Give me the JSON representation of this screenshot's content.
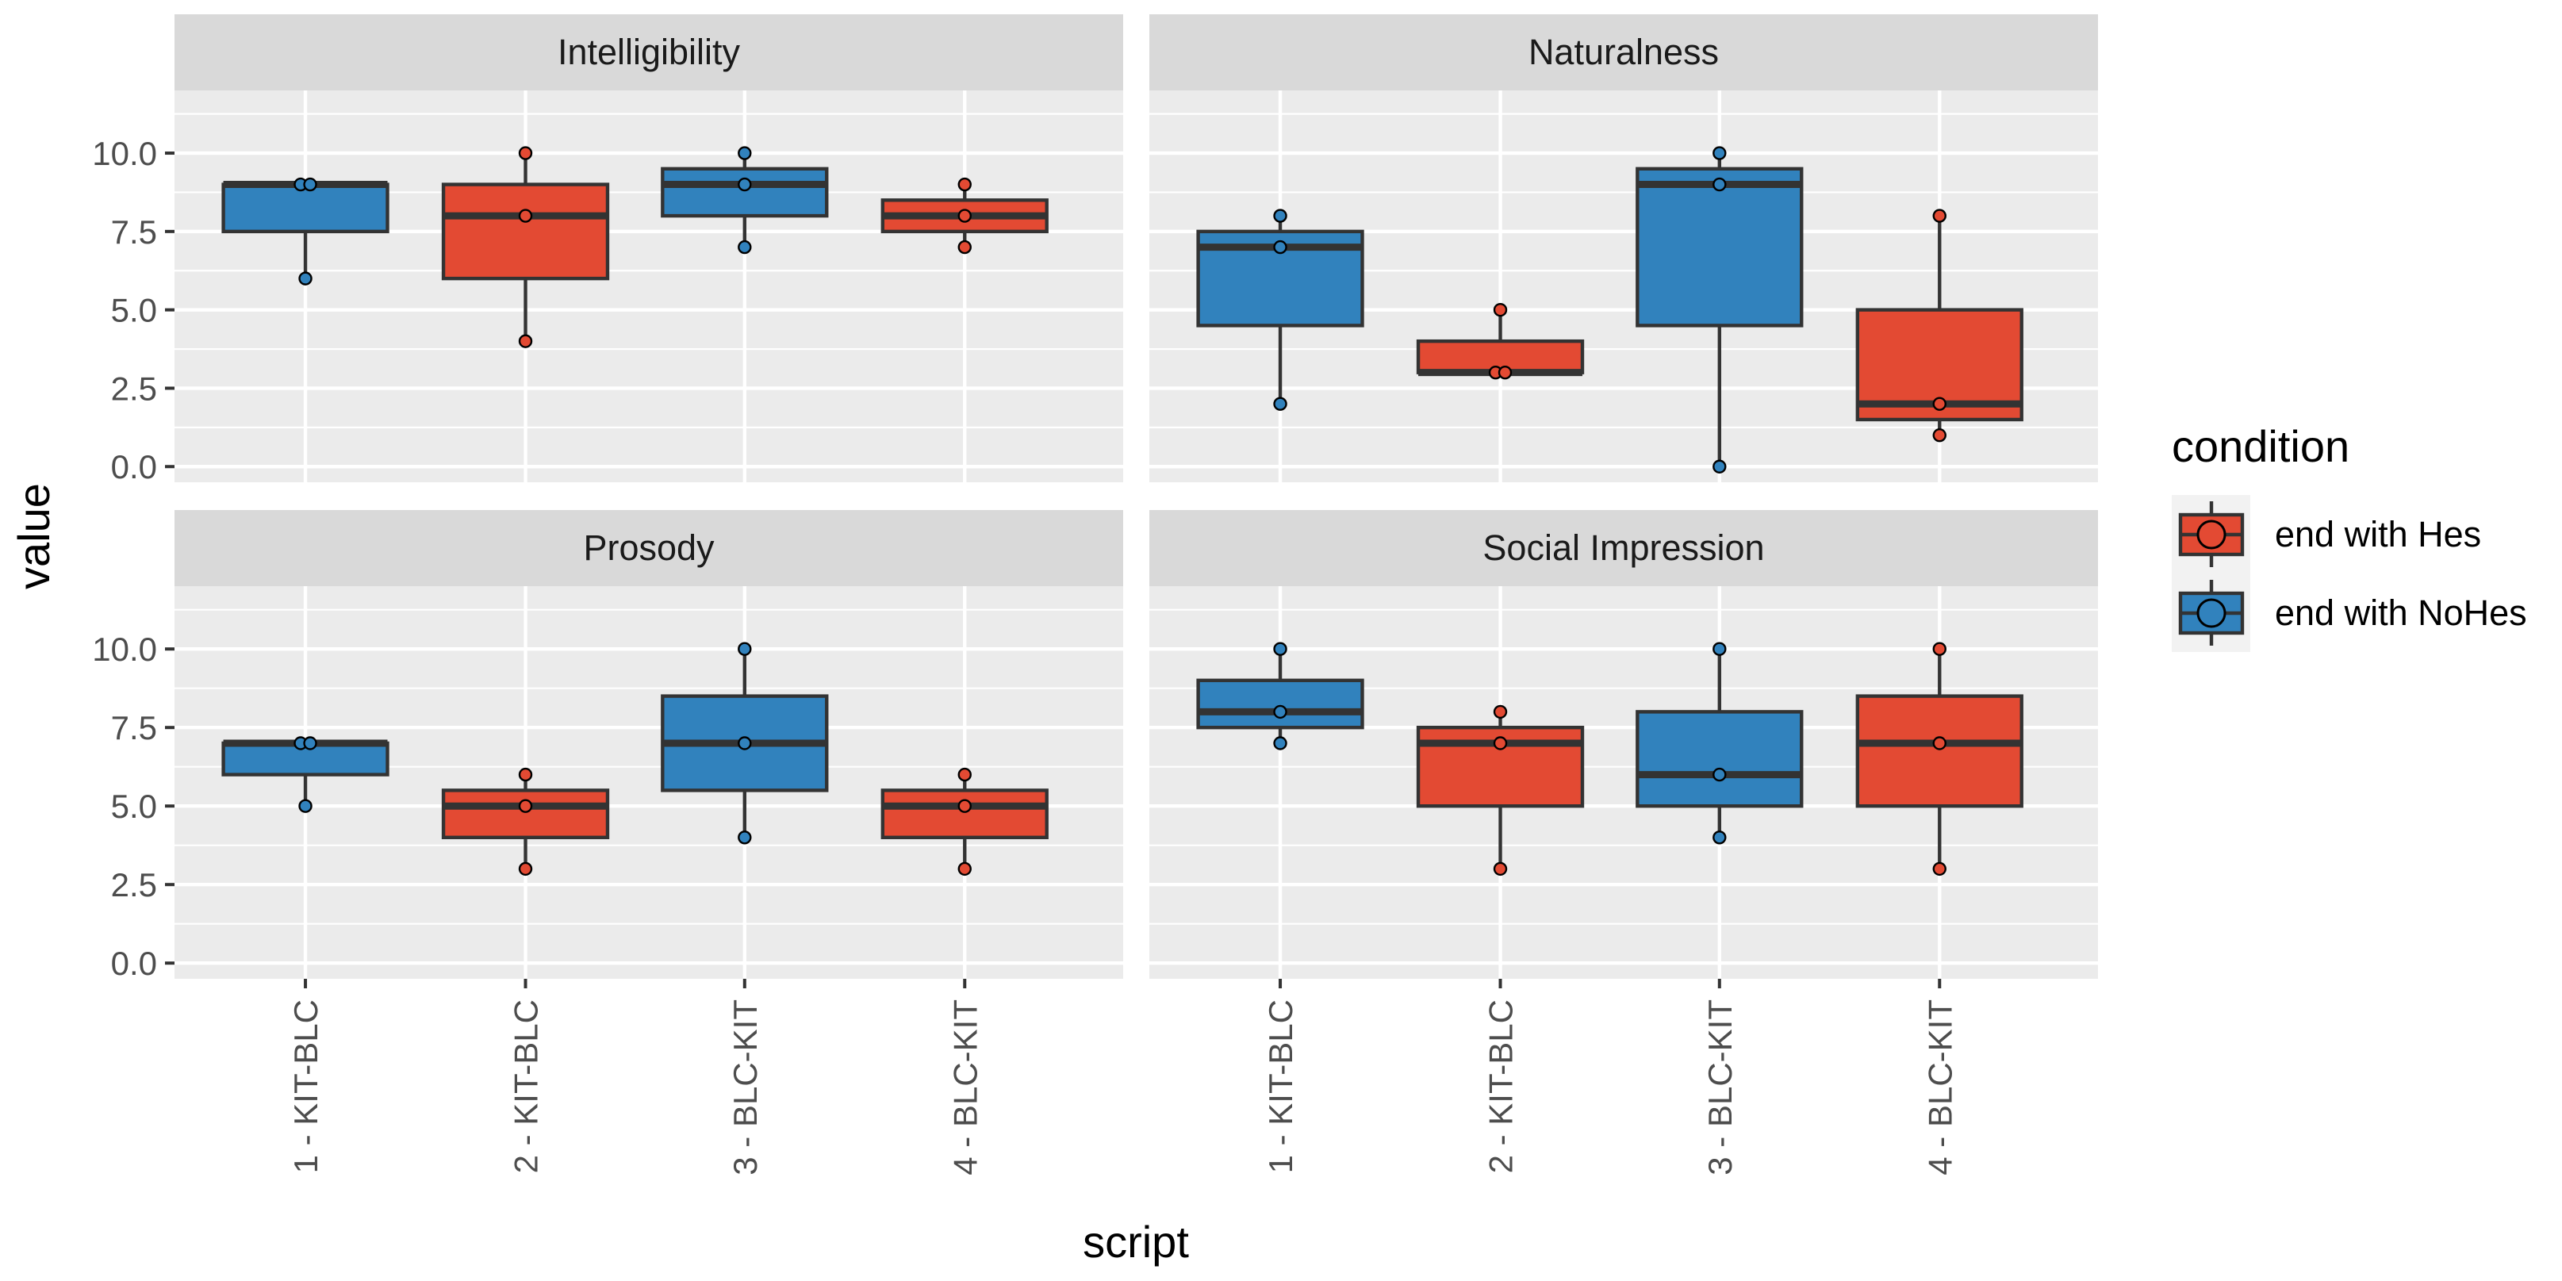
{
  "chart_data": {
    "type": "boxplot",
    "xlabel": "script",
    "ylabel": "value",
    "ylim": [
      -0.5,
      12.0
    ],
    "y_ticks": [
      "0.0",
      "2.5",
      "5.0",
      "7.5",
      "10.0"
    ],
    "y_tick_values": [
      0.0,
      2.5,
      5.0,
      7.5,
      10.0
    ],
    "categories": [
      "1 - KIT-BLC",
      "2 - KIT-BLC",
      "3 - BLC-KIT",
      "4 - BLC-KIT"
    ],
    "category_condition": [
      "end with NoHes",
      "end with Hes",
      "end with NoHes",
      "end with Hes"
    ],
    "legend": {
      "title": "condition",
      "position": "right",
      "items": [
        {
          "label": "end with Hes",
          "color": "#E34A33"
        },
        {
          "label": "end with NoHes",
          "color": "#3182BD"
        }
      ]
    },
    "colors": {
      "end with Hes": "#E34A33",
      "end with NoHes": "#3182BD",
      "panel_bg": "#EBEBEB",
      "strip_bg": "#D9D9D9",
      "grid": "#FFFFFF",
      "box_line": "#333333"
    },
    "panels": [
      {
        "title": "Intelligibility",
        "boxes": [
          {
            "q1": 7.5,
            "median": 9.0,
            "q3": 9.0,
            "whisker_low": 6.0,
            "whisker_high": 9.0,
            "points": [
              9,
              9,
              6
            ]
          },
          {
            "q1": 6.0,
            "median": 8.0,
            "q3": 9.0,
            "whisker_low": 4.0,
            "whisker_high": 10.0,
            "points": [
              10,
              8,
              4
            ]
          },
          {
            "q1": 8.0,
            "median": 9.0,
            "q3": 9.5,
            "whisker_low": 7.0,
            "whisker_high": 10.0,
            "points": [
              10,
              9,
              7
            ]
          },
          {
            "q1": 7.5,
            "median": 8.0,
            "q3": 8.5,
            "whisker_low": 7.0,
            "whisker_high": 9.0,
            "points": [
              9,
              8,
              7
            ]
          }
        ]
      },
      {
        "title": "Naturalness",
        "boxes": [
          {
            "q1": 4.5,
            "median": 7.0,
            "q3": 7.5,
            "whisker_low": 2.0,
            "whisker_high": 8.0,
            "points": [
              8,
              7,
              2
            ]
          },
          {
            "q1": 3.0,
            "median": 3.0,
            "q3": 4.0,
            "whisker_low": 3.0,
            "whisker_high": 5.0,
            "points": [
              5,
              3,
              3
            ]
          },
          {
            "q1": 4.5,
            "median": 9.0,
            "q3": 9.5,
            "whisker_low": 0.0,
            "whisker_high": 10.0,
            "points": [
              10,
              9,
              0
            ]
          },
          {
            "q1": 1.5,
            "median": 2.0,
            "q3": 5.0,
            "whisker_low": 1.0,
            "whisker_high": 8.0,
            "points": [
              8,
              2,
              1
            ]
          }
        ]
      },
      {
        "title": "Prosody",
        "boxes": [
          {
            "q1": 6.0,
            "median": 7.0,
            "q3": 7.0,
            "whisker_low": 5.0,
            "whisker_high": 7.0,
            "points": [
              7,
              7,
              5
            ]
          },
          {
            "q1": 4.0,
            "median": 5.0,
            "q3": 5.5,
            "whisker_low": 3.0,
            "whisker_high": 6.0,
            "points": [
              6,
              5,
              3
            ]
          },
          {
            "q1": 5.5,
            "median": 7.0,
            "q3": 8.5,
            "whisker_low": 4.0,
            "whisker_high": 10.0,
            "points": [
              10,
              7,
              4
            ]
          },
          {
            "q1": 4.0,
            "median": 5.0,
            "q3": 5.5,
            "whisker_low": 3.0,
            "whisker_high": 6.0,
            "points": [
              6,
              5,
              3
            ]
          }
        ]
      },
      {
        "title": "Social Impression",
        "boxes": [
          {
            "q1": 7.5,
            "median": 8.0,
            "q3": 9.0,
            "whisker_low": 7.0,
            "whisker_high": 10.0,
            "points": [
              10,
              8,
              7
            ]
          },
          {
            "q1": 5.0,
            "median": 7.0,
            "q3": 7.5,
            "whisker_low": 3.0,
            "whisker_high": 8.0,
            "points": [
              8,
              7,
              3
            ]
          },
          {
            "q1": 5.0,
            "median": 6.0,
            "q3": 8.0,
            "whisker_low": 4.0,
            "whisker_high": 10.0,
            "points": [
              10,
              6,
              4
            ]
          },
          {
            "q1": 5.0,
            "median": 7.0,
            "q3": 8.5,
            "whisker_low": 3.0,
            "whisker_high": 10.0,
            "points": [
              10,
              7,
              3
            ]
          }
        ]
      }
    ]
  }
}
